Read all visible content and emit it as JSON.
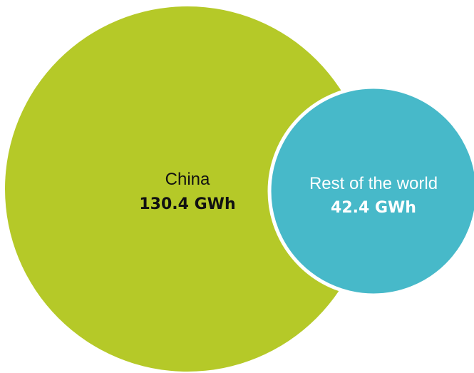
{
  "chart_data": {
    "type": "bubble",
    "title": "",
    "unit": "GWh",
    "series": [
      {
        "name": "China",
        "value": 130.4,
        "value_label": "130.4 GWh",
        "color": "#b5c928",
        "label_color": "#111111"
      },
      {
        "name": "Rest of the world",
        "value": 42.4,
        "value_label": "42.4 GWh",
        "color": "#47b9c9",
        "label_color": "#ffffff"
      }
    ]
  },
  "colors": {
    "background": "#ffffff",
    "separator": "#ffffff"
  }
}
